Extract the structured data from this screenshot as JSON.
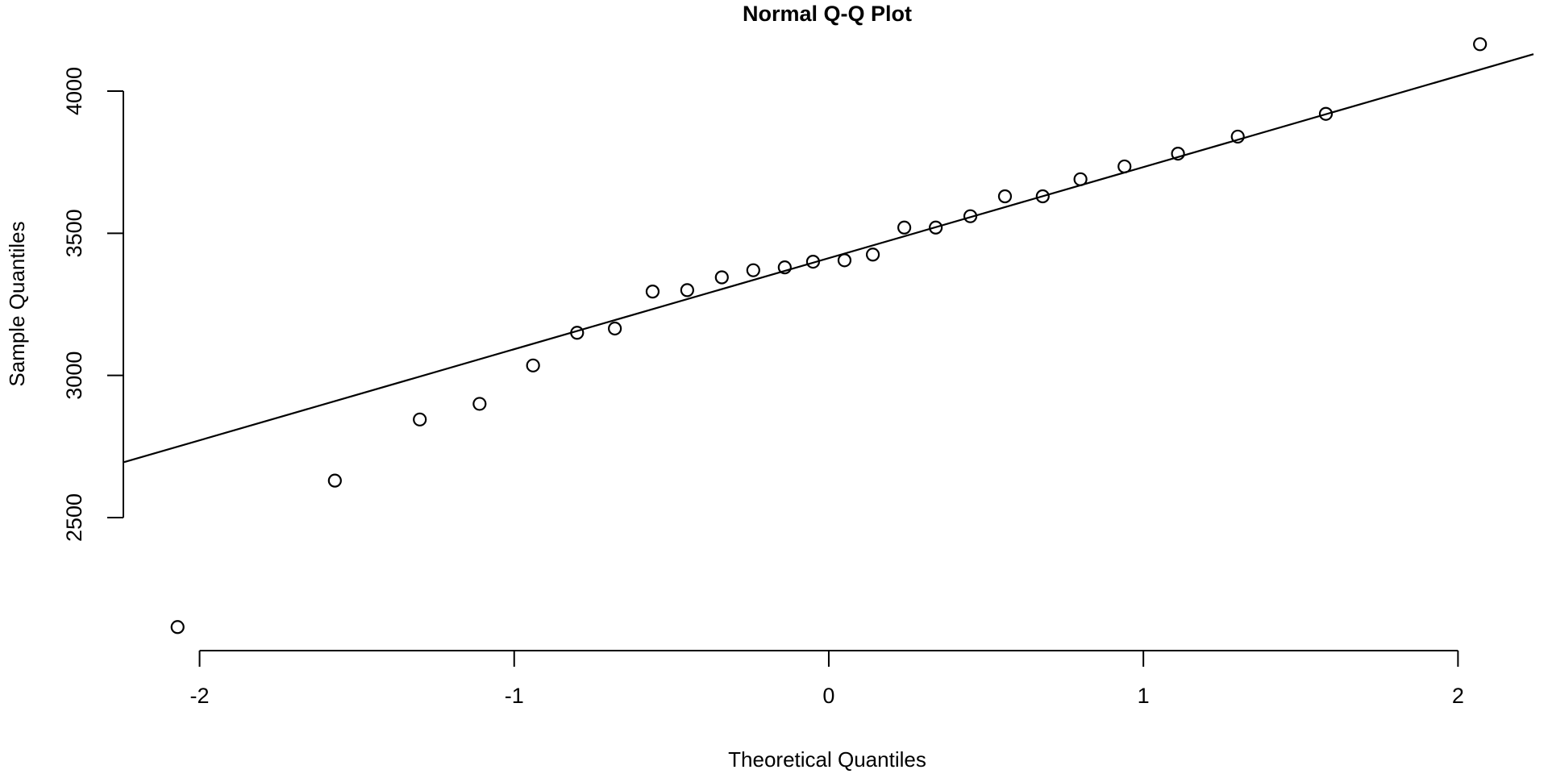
{
  "chart_data": {
    "type": "scatter",
    "title": "Normal Q-Q Plot",
    "xlabel": "Theoretical Quantiles",
    "ylabel": "Sample Quantiles",
    "x_ticks": [
      -2,
      -1,
      0,
      1,
      2
    ],
    "x_tick_labels": [
      "-2",
      "-1",
      "0",
      "1",
      "2"
    ],
    "y_ticks": [
      2500,
      3000,
      3500,
      4000
    ],
    "y_tick_labels": [
      "2500",
      "3000",
      "3500",
      "4000"
    ],
    "xlim": [
      -2.25,
      2.24
    ],
    "ylim": [
      2052,
      4207
    ],
    "grid": false,
    "legend": "none",
    "marker": "open-circle",
    "points": [
      {
        "x": -2.07,
        "y": 2115
      },
      {
        "x": -1.57,
        "y": 2630
      },
      {
        "x": -1.3,
        "y": 2845
      },
      {
        "x": -1.11,
        "y": 2900
      },
      {
        "x": -0.94,
        "y": 3035
      },
      {
        "x": -0.8,
        "y": 3150
      },
      {
        "x": -0.68,
        "y": 3165
      },
      {
        "x": -0.56,
        "y": 3295
      },
      {
        "x": -0.45,
        "y": 3300
      },
      {
        "x": -0.34,
        "y": 3345
      },
      {
        "x": -0.24,
        "y": 3370
      },
      {
        "x": -0.14,
        "y": 3380
      },
      {
        "x": -0.05,
        "y": 3400
      },
      {
        "x": 0.05,
        "y": 3405
      },
      {
        "x": 0.14,
        "y": 3425
      },
      {
        "x": 0.24,
        "y": 3520
      },
      {
        "x": 0.34,
        "y": 3520
      },
      {
        "x": 0.45,
        "y": 3560
      },
      {
        "x": 0.56,
        "y": 3630
      },
      {
        "x": 0.68,
        "y": 3630
      },
      {
        "x": 0.8,
        "y": 3690
      },
      {
        "x": 0.94,
        "y": 3735
      },
      {
        "x": 1.11,
        "y": 3780
      },
      {
        "x": 1.3,
        "y": 3840
      },
      {
        "x": 1.58,
        "y": 3920
      },
      {
        "x": 2.07,
        "y": 4165
      }
    ],
    "reference_line": {
      "x1": -2.24,
      "y1": 2695,
      "x2": 2.24,
      "y2": 4130
    },
    "colors": {
      "foreground": "#000000",
      "background": "#ffffff"
    }
  }
}
